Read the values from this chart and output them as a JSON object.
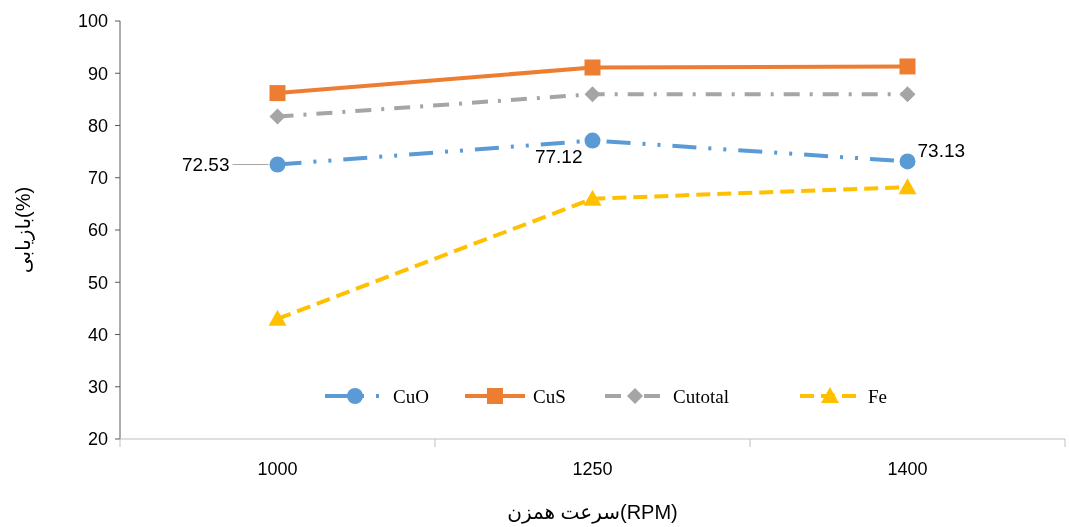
{
  "chart_data": {
    "type": "line",
    "xlabel": "سرعت همزن(RPM)",
    "ylabel": "بازیابی(%)",
    "categories": [
      "1000",
      "1250",
      "1400"
    ],
    "ylim": [
      20,
      100
    ],
    "yticks": [
      20,
      30,
      40,
      50,
      60,
      70,
      80,
      90,
      100
    ],
    "grid": false,
    "legend": "bottom",
    "series": [
      {
        "name": "CuO",
        "color": "#5b9bd5",
        "values": [
          72.53,
          77.12,
          73.13
        ],
        "marker": "circle",
        "line_style": "dashdotdot",
        "value_labels": [
          "72.53",
          "77.12",
          "73.13"
        ]
      },
      {
        "name": "CuS",
        "color": "#ed7d31",
        "values": [
          86.2,
          91.1,
          91.3
        ],
        "marker": "square",
        "line_style": "solid"
      },
      {
        "name": "Cutotal",
        "color": "#a5a5a5",
        "values": [
          81.7,
          86,
          86
        ],
        "marker": "diamond",
        "line_style": "dashdot"
      },
      {
        "name": "Fe",
        "color": "#ffc000",
        "values": [
          43,
          66,
          68.2
        ],
        "marker": "triangle",
        "line_style": "dashed"
      }
    ]
  }
}
